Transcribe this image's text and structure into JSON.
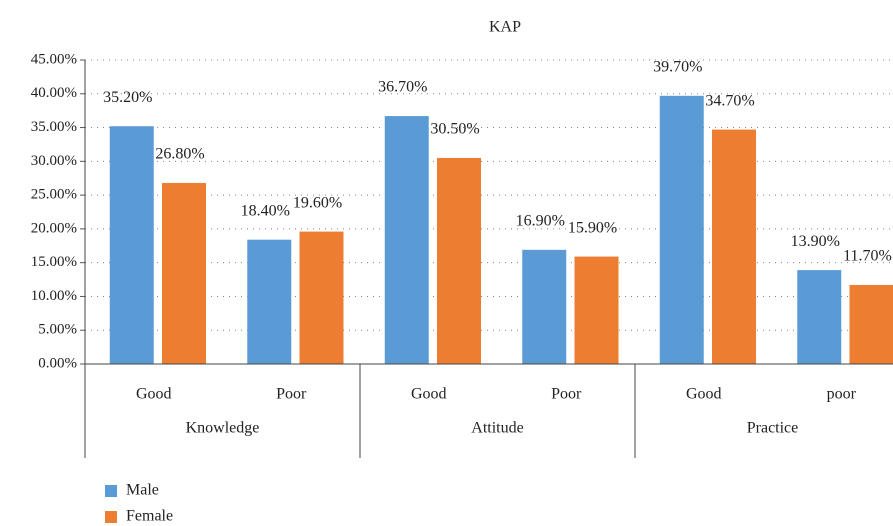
{
  "chart_data": {
    "type": "bar",
    "title": "KAP",
    "categories": [
      "Good",
      "Poor",
      "Good",
      "Poor",
      "Good",
      "poor"
    ],
    "groups": [
      "Knowledge",
      "Attitude",
      "Practice"
    ],
    "series": [
      {
        "name": "Male",
        "color": "#5b9bd5",
        "values": [
          35.2,
          18.4,
          36.7,
          16.9,
          39.7,
          13.9
        ],
        "value_labels": [
          "35.20%",
          "18.40%",
          "36.70%",
          "16.90%",
          "39.70%",
          "13.90%"
        ]
      },
      {
        "name": "Female",
        "color": "#ed7d31",
        "values": [
          26.8,
          19.6,
          30.5,
          15.9,
          34.7,
          11.7
        ],
        "value_labels": [
          "26.80%",
          "19.60%",
          "30.50%",
          "15.90%",
          "34.70%",
          "11.70%"
        ]
      }
    ],
    "ylim": [
      0,
      45
    ],
    "yticks": [
      {
        "value": 0,
        "label": "0.00%"
      },
      {
        "value": 5,
        "label": "5.00%"
      },
      {
        "value": 10,
        "label": "10.00%"
      },
      {
        "value": 15,
        "label": "15.00%"
      },
      {
        "value": 20,
        "label": "20.00%"
      },
      {
        "value": 25,
        "label": "25.00%"
      },
      {
        "value": 30,
        "label": "30.00%"
      },
      {
        "value": 35,
        "label": "35.00%"
      },
      {
        "value": 40,
        "label": "40.00%"
      },
      {
        "value": 45,
        "label": "45.00%"
      }
    ],
    "grid": true
  }
}
